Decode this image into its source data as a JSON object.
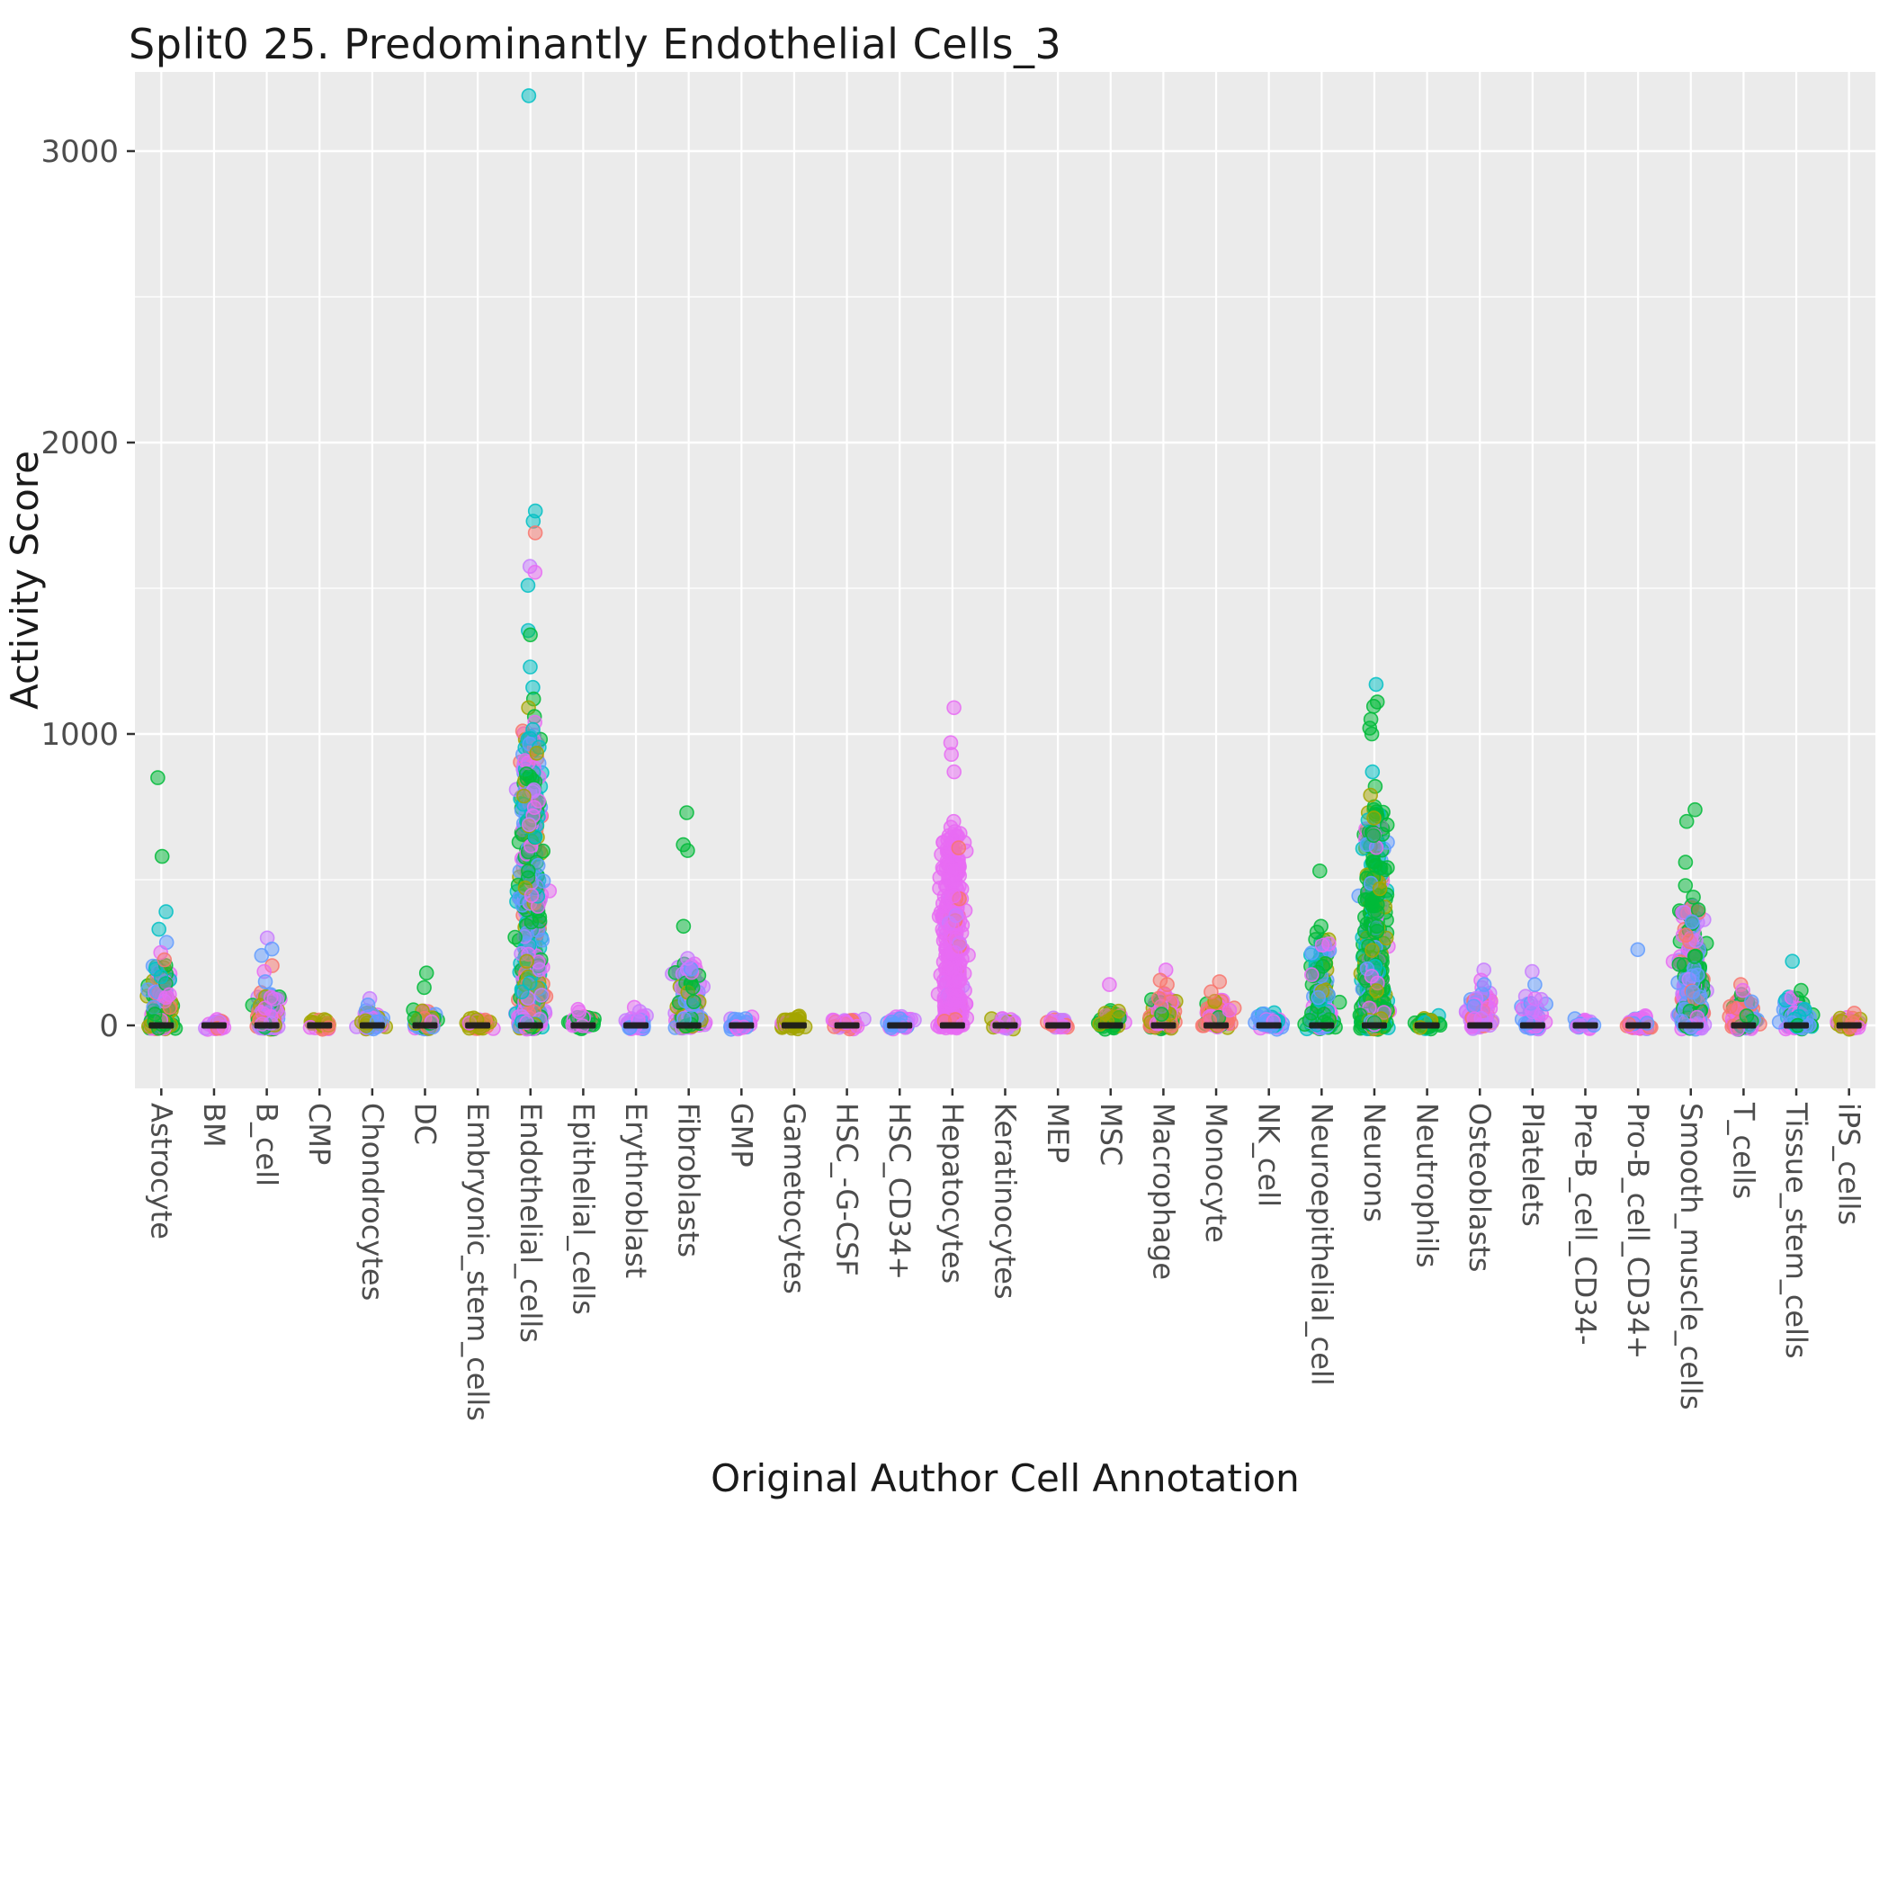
{
  "title": "Split0 25. Predominantly Endothelial Cells_3",
  "chart_data": {
    "type": "scatter",
    "subtype": "jitter-strip",
    "title": "Split0 25. Predominantly Endothelial Cells_3",
    "xlabel": "Original Author Cell Annotation",
    "ylabel": "Activity Score",
    "ylim": [
      -216,
      3271
    ],
    "yticks": [
      0,
      1000,
      2000,
      3000
    ],
    "yticks_minor": [
      500,
      1500,
      2500
    ],
    "grid": true,
    "legend": "none",
    "panel_background": "#EBEBEB",
    "grid_color": "#FFFFFF",
    "text_color": "#1a1a1a",
    "tick_label_color": "#4d4d4d",
    "tick_mark_color": "#333333",
    "zero_bar_color": "#1a1a1a",
    "point_alpha": 0.5,
    "point_radius": 7.5,
    "seed": 7,
    "palette": {
      "salmon": "#F8766D",
      "olive": "#A3A500",
      "green": "#00BA38",
      "teal": "#00BFC4",
      "blue": "#619CFF",
      "magenta": "#E76BF3",
      "purple": "#C77CFF"
    },
    "categories": [
      {
        "label": "Astrocyte",
        "n": 140,
        "cluster_max": 200,
        "skew": 2.4,
        "colors": {
          "green": 6,
          "magenta": 4,
          "olive": 3,
          "teal": 2,
          "blue": 2,
          "salmon": 2,
          "purple": 1
        },
        "outliers": [
          [
            850,
            "green"
          ],
          [
            580,
            "green"
          ],
          [
            390,
            "teal"
          ],
          [
            330,
            "teal"
          ],
          [
            285,
            "blue"
          ],
          [
            250,
            "magenta"
          ],
          [
            225,
            "salmon"
          ]
        ]
      },
      {
        "label": "BM",
        "n": 25,
        "cluster_max": 12,
        "skew": 2,
        "colors": {
          "magenta": 5,
          "salmon": 3,
          "purple": 2
        },
        "outliers": []
      },
      {
        "label": "B_cell",
        "n": 110,
        "cluster_max": 100,
        "skew": 2.4,
        "colors": {
          "blue": 5,
          "purple": 4,
          "magenta": 4,
          "salmon": 3,
          "green": 2,
          "olive": 2
        },
        "outliers": [
          [
            300,
            "purple"
          ],
          [
            262,
            "blue"
          ],
          [
            240,
            "blue"
          ],
          [
            205,
            "salmon"
          ],
          [
            185,
            "magenta"
          ],
          [
            150,
            "blue"
          ]
        ]
      },
      {
        "label": "CMP",
        "n": 22,
        "cluster_max": 18,
        "skew": 2,
        "colors": {
          "olive": 6,
          "magenta": 2,
          "salmon": 2
        },
        "outliers": []
      },
      {
        "label": "Chondrocytes",
        "n": 55,
        "cluster_max": 42,
        "skew": 2,
        "colors": {
          "purple": 3,
          "blue": 3,
          "magenta": 2,
          "olive": 2
        },
        "outliers": [
          [
            92,
            "purple"
          ],
          [
            70,
            "blue"
          ]
        ]
      },
      {
        "label": "DC",
        "n": 55,
        "cluster_max": 50,
        "skew": 2.2,
        "colors": {
          "green": 3,
          "blue": 2,
          "magenta": 2,
          "salmon": 2,
          "olive": 1
        },
        "outliers": [
          [
            180,
            "green"
          ],
          [
            130,
            "green"
          ]
        ]
      },
      {
        "label": "Embryonic_stem_cells",
        "n": 50,
        "cluster_max": 14,
        "skew": 2,
        "colors": {
          "olive": 5,
          "salmon": 3,
          "magenta": 2
        },
        "outliers": []
      },
      {
        "label": "Endothelial_cells",
        "n": 600,
        "cluster_max": 1000,
        "skew": 2.1,
        "colors": {
          "teal": 22,
          "green": 22,
          "magenta": 18,
          "purple": 12,
          "olive": 10,
          "salmon": 8,
          "blue": 8
        },
        "outliers": [
          [
            3190,
            "teal"
          ],
          [
            1765,
            "teal"
          ],
          [
            1730,
            "teal"
          ],
          [
            1690,
            "salmon"
          ],
          [
            1575,
            "purple"
          ],
          [
            1555,
            "magenta"
          ],
          [
            1510,
            "teal"
          ],
          [
            1355,
            "teal"
          ],
          [
            1340,
            "green"
          ],
          [
            1230,
            "teal"
          ],
          [
            1160,
            "teal"
          ],
          [
            1120,
            "green"
          ],
          [
            1090,
            "olive"
          ],
          [
            1060,
            "green"
          ],
          [
            1040,
            "magenta"
          ],
          [
            1015,
            "teal"
          ]
        ]
      },
      {
        "label": "Epithelial_cells",
        "n": 45,
        "cluster_max": 28,
        "skew": 2.2,
        "colors": {
          "green": 5,
          "magenta": 3,
          "salmon": 2
        },
        "outliers": [
          [
            55,
            "magenta"
          ],
          [
            46,
            "magenta"
          ]
        ]
      },
      {
        "label": "Erythroblast",
        "n": 38,
        "cluster_max": 30,
        "skew": 2.2,
        "colors": {
          "magenta": 4,
          "purple": 3,
          "blue": 3
        },
        "outliers": [
          [
            62,
            "magenta"
          ],
          [
            48,
            "purple"
          ]
        ]
      },
      {
        "label": "Fibroblasts",
        "n": 140,
        "cluster_max": 210,
        "skew": 2.3,
        "colors": {
          "purple": 5,
          "magenta": 5,
          "green": 4,
          "blue": 3,
          "olive": 3
        },
        "outliers": [
          [
            730,
            "green"
          ],
          [
            620,
            "green"
          ],
          [
            600,
            "green"
          ],
          [
            340,
            "green"
          ],
          [
            230,
            "purple"
          ]
        ]
      },
      {
        "label": "GMP",
        "n": 26,
        "cluster_max": 18,
        "skew": 2,
        "colors": {
          "blue": 4,
          "purple": 3,
          "magenta": 3
        },
        "outliers": []
      },
      {
        "label": "Gametocytes",
        "n": 38,
        "cluster_max": 26,
        "skew": 1.8,
        "colors": {
          "olive": 8,
          "magenta": 2
        },
        "outliers": []
      },
      {
        "label": "HSC_-G-CSF",
        "n": 36,
        "cluster_max": 18,
        "skew": 2,
        "colors": {
          "magenta": 5,
          "salmon": 3,
          "purple": 2
        },
        "outliers": []
      },
      {
        "label": "HSC_CD34+",
        "n": 45,
        "cluster_max": 22,
        "skew": 2,
        "colors": {
          "blue": 4,
          "purple": 3,
          "magenta": 3
        },
        "outliers": []
      },
      {
        "label": "Hepatocytes",
        "n": 380,
        "cluster_max": 650,
        "skew": 1.6,
        "colors": {
          "magenta": 92,
          "purple": 5,
          "salmon": 3
        },
        "outliers": [
          [
            1090,
            "magenta"
          ],
          [
            970,
            "magenta"
          ],
          [
            930,
            "magenta"
          ],
          [
            870,
            "magenta"
          ],
          [
            700,
            "magenta"
          ],
          [
            680,
            "magenta"
          ],
          [
            665,
            "magenta"
          ]
        ]
      },
      {
        "label": "Keratinocytes",
        "n": 22,
        "cluster_max": 12,
        "skew": 2,
        "colors": {
          "magenta": 4,
          "purple": 3,
          "olive": 3
        },
        "outliers": []
      },
      {
        "label": "MEP",
        "n": 26,
        "cluster_max": 14,
        "skew": 2,
        "colors": {
          "salmon": 4,
          "magenta": 4,
          "purple": 2
        },
        "outliers": []
      },
      {
        "label": "MSC",
        "n": 40,
        "cluster_max": 52,
        "skew": 2.2,
        "colors": {
          "green": 5,
          "magenta": 3,
          "olive": 2
        },
        "outliers": [
          [
            140,
            "magenta"
          ]
        ]
      },
      {
        "label": "Macrophage",
        "n": 110,
        "cluster_max": 105,
        "skew": 2,
        "colors": {
          "magenta": 35,
          "salmon": 25,
          "olive": 25,
          "green": 15
        },
        "outliers": [
          [
            190,
            "magenta"
          ],
          [
            155,
            "salmon"
          ],
          [
            140,
            "salmon"
          ]
        ]
      },
      {
        "label": "Monocyte",
        "n": 90,
        "cluster_max": 85,
        "skew": 2,
        "colors": {
          "salmon": 35,
          "magenta": 30,
          "olive": 20,
          "green": 15
        },
        "outliers": [
          [
            150,
            "salmon"
          ],
          [
            115,
            "salmon"
          ]
        ]
      },
      {
        "label": "NK_cell",
        "n": 55,
        "cluster_max": 38,
        "skew": 2,
        "colors": {
          "blue": 35,
          "teal": 25,
          "magenta": 25,
          "purple": 15
        },
        "outliers": []
      },
      {
        "label": "Neuroepithelial_cell",
        "n": 170,
        "cluster_max": 300,
        "skew": 2.7,
        "colors": {
          "green": 35,
          "teal": 20,
          "blue": 20,
          "magenta": 15,
          "olive": 10
        },
        "outliers": [
          [
            530,
            "green"
          ],
          [
            340,
            "green"
          ],
          [
            320,
            "green"
          ]
        ]
      },
      {
        "label": "Neurons",
        "n": 450,
        "cluster_max": 750,
        "skew": 2.0,
        "colors": {
          "green": 55,
          "olive": 15,
          "teal": 12,
          "magenta": 10,
          "blue": 8
        },
        "outliers": [
          [
            1170,
            "teal"
          ],
          [
            1110,
            "green"
          ],
          [
            1095,
            "green"
          ],
          [
            1050,
            "green"
          ],
          [
            1020,
            "green"
          ],
          [
            1000,
            "green"
          ],
          [
            870,
            "teal"
          ],
          [
            820,
            "green"
          ],
          [
            790,
            "olive"
          ]
        ]
      },
      {
        "label": "Neutrophils",
        "n": 35,
        "cluster_max": 24,
        "skew": 2,
        "colors": {
          "green": 5,
          "teal": 3,
          "olive": 2
        },
        "outliers": []
      },
      {
        "label": "Osteoblasts",
        "n": 75,
        "cluster_max": 125,
        "skew": 1.9,
        "colors": {
          "purple": 3,
          "magenta": 3,
          "blue": 2,
          "salmon": 2
        },
        "outliers": [
          [
            190,
            "purple"
          ],
          [
            155,
            "magenta"
          ],
          [
            140,
            "blue"
          ]
        ]
      },
      {
        "label": "Platelets",
        "n": 48,
        "cluster_max": 115,
        "skew": 2,
        "colors": {
          "purple": 35,
          "blue": 35,
          "magenta": 30
        },
        "outliers": [
          [
            185,
            "purple"
          ],
          [
            140,
            "blue"
          ]
        ]
      },
      {
        "label": "Pre-B_cell_CD34-",
        "n": 22,
        "cluster_max": 10,
        "skew": 2,
        "colors": {
          "magenta": 5,
          "blue": 3,
          "purple": 2
        },
        "outliers": []
      },
      {
        "label": "Pro-B_cell_CD34+",
        "n": 45,
        "cluster_max": 20,
        "skew": 2,
        "colors": {
          "magenta": 5,
          "blue": 3,
          "salmon": 2
        },
        "outliers": [
          [
            260,
            "blue"
          ]
        ]
      },
      {
        "label": "Smooth_muscle_cells",
        "n": 280,
        "cluster_max": 420,
        "skew": 2.2,
        "colors": {
          "green": 30,
          "magenta": 25,
          "purple": 15,
          "blue": 15,
          "salmon": 15
        },
        "outliers": [
          [
            740,
            "green"
          ],
          [
            700,
            "green"
          ],
          [
            560,
            "green"
          ],
          [
            480,
            "green"
          ],
          [
            440,
            "green"
          ],
          [
            310,
            "salmon"
          ]
        ]
      },
      {
        "label": "T_cells",
        "n": 110,
        "cluster_max": 100,
        "skew": 2.2,
        "colors": {
          "magenta": 35,
          "salmon": 30,
          "green": 20,
          "blue": 15
        },
        "outliers": [
          [
            140,
            "salmon"
          ],
          [
            120,
            "magenta"
          ]
        ]
      },
      {
        "label": "Tissue_stem_cells",
        "n": 90,
        "cluster_max": 90,
        "skew": 2.1,
        "colors": {
          "magenta": 3,
          "green": 3,
          "blue": 2,
          "teal": 2
        },
        "outliers": [
          [
            220,
            "teal"
          ],
          [
            120,
            "green"
          ]
        ]
      },
      {
        "label": "iPS_cells",
        "n": 36,
        "cluster_max": 26,
        "skew": 2,
        "colors": {
          "salmon": 4,
          "magenta": 3,
          "olive": 3
        },
        "outliers": [
          [
            42,
            "salmon"
          ]
        ]
      }
    ]
  }
}
